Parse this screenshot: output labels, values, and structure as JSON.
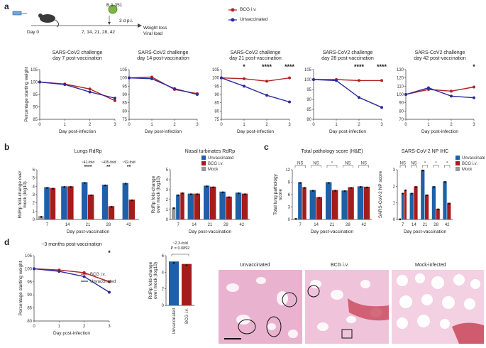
{
  "panel_labels": {
    "a": "a",
    "b": "b",
    "c": "c",
    "d": "d"
  },
  "schematic": {
    "variant": "B.1.351",
    "day0": "Day 0",
    "days": "7, 14, 21, 28, 42",
    "dpi": "3 d p.i.",
    "readout1": "Weight loss",
    "readout2": "Viral load"
  },
  "legend_a": {
    "bcg": "BCG i.v.",
    "unvacc": "Unvaccinated"
  },
  "colors": {
    "bcg": "#b22222",
    "unvacc": "#2a2a9e",
    "bar_unvacc": "#1f5fa8",
    "bar_bcg": "#a51c1c",
    "mock": "#999999"
  },
  "chart_data": [
    {
      "id": "a1",
      "type": "line",
      "title": [
        "SARS-CoV2 challenge",
        "day 7 post-vaccination"
      ],
      "xlabel": "Day post-infection",
      "ylabel": "Percentage starting weight",
      "ylim": [
        85,
        105
      ],
      "yticks": [
        85,
        90,
        95,
        100,
        105
      ],
      "xticks": [
        0,
        1,
        2,
        3
      ],
      "series": [
        {
          "name": "BCG i.v.",
          "x": [
            0,
            1,
            2,
            3
          ],
          "values": [
            100,
            99.2,
            97.2,
            92.5
          ]
        },
        {
          "name": "Unvaccinated",
          "x": [
            0,
            1,
            2,
            3
          ],
          "values": [
            100,
            99,
            96,
            93.5
          ]
        }
      ],
      "significance": []
    },
    {
      "id": "a2",
      "type": "line",
      "title": [
        "SARS-CoV2 challenge",
        "day 14 post-vaccination"
      ],
      "xlabel": "Day post-infection",
      "ylabel": "",
      "ylim": [
        75,
        105
      ],
      "yticks": [
        75,
        80,
        85,
        90,
        95,
        100,
        105
      ],
      "xticks": [
        0,
        1,
        2,
        3
      ],
      "series": [
        {
          "name": "BCG i.v.",
          "x": [
            0,
            1,
            2,
            3
          ],
          "values": [
            100,
            100.5,
            93,
            90.5
          ]
        },
        {
          "name": "Unvaccinated",
          "x": [
            0,
            1,
            2,
            3
          ],
          "values": [
            100,
            99.5,
            93.5,
            90
          ]
        }
      ],
      "significance": []
    },
    {
      "id": "a3",
      "type": "line",
      "title": [
        "SARS-CoV2 challenge",
        "day 21 post-vaccination"
      ],
      "xlabel": "Day post-infection",
      "ylabel": "",
      "ylim": [
        75,
        105
      ],
      "yticks": [
        75,
        80,
        85,
        90,
        95,
        100,
        105
      ],
      "xticks": [
        0,
        1,
        2,
        3
      ],
      "series": [
        {
          "name": "BCG i.v.",
          "x": [
            0,
            1,
            2,
            3
          ],
          "values": [
            100,
            99.5,
            98,
            100
          ]
        },
        {
          "name": "Unvaccinated",
          "x": [
            0,
            1,
            2,
            3
          ],
          "values": [
            100,
            95,
            89.5,
            85.5
          ]
        }
      ],
      "significance": [
        {
          "x": 1,
          "label": "*"
        },
        {
          "x": 2,
          "label": "****"
        },
        {
          "x": 3,
          "label": "****"
        }
      ]
    },
    {
      "id": "a4",
      "type": "line",
      "title": [
        "SARS-CoV2 challenge",
        "day 28 post-vaccination"
      ],
      "xlabel": "Day post-infection",
      "ylabel": "",
      "ylim": [
        80,
        105
      ],
      "yticks": [
        80,
        85,
        90,
        95,
        100,
        105
      ],
      "xticks": [
        0,
        1,
        2,
        3
      ],
      "series": [
        {
          "name": "BCG i.v.",
          "x": [
            0,
            1,
            2,
            3
          ],
          "values": [
            100,
            100,
            99.5,
            99.5
          ]
        },
        {
          "name": "Unvaccinated",
          "x": [
            0,
            1,
            2,
            3
          ],
          "values": [
            100,
            99.5,
            91,
            86
          ]
        }
      ],
      "significance": [
        {
          "x": 2,
          "label": "****"
        },
        {
          "x": 3,
          "label": "****"
        }
      ]
    },
    {
      "id": "a5",
      "type": "line",
      "title": [
        "SARS-CoV2 challenge",
        "day 42 post-vaccination"
      ],
      "xlabel": "Day post-infection",
      "ylabel": "",
      "ylim": [
        70,
        130
      ],
      "yticks": [
        70,
        80,
        90,
        100,
        110,
        120,
        130
      ],
      "xticks": [
        0,
        1,
        2,
        3
      ],
      "series": [
        {
          "name": "BCG i.v.",
          "x": [
            0,
            1,
            2,
            3
          ],
          "values": [
            100,
            106,
            104,
            109
          ]
        },
        {
          "name": "Unvaccinated",
          "x": [
            0,
            1,
            2,
            3
          ],
          "values": [
            100,
            108,
            98,
            96
          ]
        }
      ],
      "significance": [
        {
          "x": 3,
          "label": "*"
        }
      ]
    },
    {
      "id": "b1",
      "type": "bar",
      "title": [
        "Lungs RdRp"
      ],
      "xlabel": "Day post-vaccination",
      "ylabel": [
        "RdRp fold-change over",
        "mock (log10)"
      ],
      "ylim": [
        0,
        6
      ],
      "yticks": [
        0,
        1,
        2,
        3,
        4,
        5,
        6
      ],
      "categories": [
        "7",
        "14",
        "21",
        "28",
        "42"
      ],
      "series": [
        {
          "name": "Mock",
          "values": [
            0.4,
            null,
            null,
            null,
            null
          ]
        },
        {
          "name": "Unvaccinated",
          "values": [
            3.9,
            4.0,
            4.5,
            4.2,
            4.4
          ]
        },
        {
          "name": "BCG i.v.",
          "values": [
            3.8,
            4.0,
            3.0,
            1.6,
            2.4
          ]
        }
      ],
      "annotations": [
        {
          "cat": "21",
          "fold": "~41-fold",
          "stars": "****"
        },
        {
          "cat": "28",
          "fold": "~435-fold",
          "stars": "**"
        },
        {
          "cat": "42",
          "fold": "~92-fold",
          "stars": "**"
        }
      ]
    },
    {
      "id": "b2",
      "type": "bar",
      "title": [
        "Nasal turbinates RdRp"
      ],
      "xlabel": "Day post-vaccination",
      "ylabel": [
        "RdRp fold-change",
        "over mock (log10)"
      ],
      "ylim": [
        0,
        5
      ],
      "yticks": [
        0,
        1,
        2,
        3,
        4,
        5
      ],
      "categories": [
        "7",
        "14",
        "21",
        "28",
        "42"
      ],
      "series": [
        {
          "name": "Mock",
          "values": [
            1.2,
            null,
            null,
            null,
            null
          ]
        },
        {
          "name": "Unvaccinated",
          "values": [
            2.5,
            2.6,
            3.4,
            2.8,
            2.7
          ]
        },
        {
          "name": "BCG i.v.",
          "values": [
            2.7,
            2.6,
            3.3,
            2.3,
            2.6
          ]
        }
      ],
      "legend": [
        "Unvaccinated",
        "BCG i.v.",
        "Mock"
      ]
    },
    {
      "id": "c1",
      "type": "bar",
      "title": [
        "Total pathology score (H&E)"
      ],
      "xlabel": "Day post-vaccination",
      "ylabel": [
        "Total lung pathology",
        "score"
      ],
      "ylim": [
        0,
        12
      ],
      "yticks": [
        0,
        3,
        6,
        9,
        12
      ],
      "categories": [
        "7",
        "14",
        "21",
        "28",
        "42"
      ],
      "series": [
        {
          "name": "Mock",
          "values": [
            0.3,
            null,
            null,
            null,
            null
          ]
        },
        {
          "name": "Unvaccinated",
          "values": [
            9.0,
            7.1,
            9.0,
            7.0,
            8.0
          ]
        },
        {
          "name": "BCG i.v.",
          "values": [
            7.8,
            5.4,
            7.1,
            7.8,
            7.9
          ]
        }
      ],
      "significance": [
        "NS",
        "NS",
        "*",
        "NS",
        "NS"
      ]
    },
    {
      "id": "c2",
      "type": "bar",
      "title": [
        "SARS-CoV-2 NP IHC"
      ],
      "xlabel": "Day post-vaccination",
      "ylabel": [
        "SARS-CoV-2 NP score"
      ],
      "ylim": [
        0,
        3
      ],
      "yticks": [
        0,
        1,
        2,
        3
      ],
      "categories": [
        "7",
        "14",
        "21",
        "28",
        "42"
      ],
      "series": [
        {
          "name": "Mock",
          "values": [
            0.05,
            null,
            null,
            null,
            null
          ]
        },
        {
          "name": "Unvaccinated",
          "values": [
            1.6,
            1.6,
            3.0,
            2.0,
            2.3
          ]
        },
        {
          "name": "BCG i.v.",
          "values": [
            1.8,
            2.0,
            1.5,
            0.65,
            1.0
          ]
        }
      ],
      "significance": [
        "NS",
        "NS",
        "*",
        "*",
        "*"
      ],
      "legend": [
        "Unvaccinated",
        "BCG i.v.",
        "Mock"
      ]
    },
    {
      "id": "d1",
      "type": "line",
      "title": [
        "~3 months post-vaccination"
      ],
      "xlabel": "Day post-infection",
      "ylabel": "Percentage starting weight",
      "ylim": [
        80,
        105
      ],
      "yticks": [
        80,
        85,
        90,
        95,
        100,
        105
      ],
      "xticks": [
        0,
        1,
        2,
        3
      ],
      "series": [
        {
          "name": "BCG i.v.",
          "x": [
            0,
            1,
            2,
            3
          ],
          "values": [
            100,
            99.5,
            98.5,
            95
          ]
        },
        {
          "name": "Unvaccinated",
          "x": [
            0,
            1,
            2,
            3
          ],
          "values": [
            100,
            99,
            97,
            91
          ]
        }
      ],
      "significance": [
        {
          "x": 3,
          "label": "*"
        }
      ]
    },
    {
      "id": "d2",
      "type": "bar",
      "title": [
        "~2.3-fold",
        "P = 0.0892"
      ],
      "ylabel": [
        "RdRp fold-change",
        "over mock (log10)"
      ],
      "ylim": [
        0,
        6
      ],
      "yticks": [
        0,
        2,
        4,
        6
      ],
      "categories": [
        "Unvaccinated",
        "BCG i.v."
      ],
      "values": [
        5.3,
        5.0
      ]
    }
  ],
  "histology": {
    "unvacc": "Unvaccinated",
    "bcg": "BCG i.v.",
    "mock": "Mock-infected"
  }
}
